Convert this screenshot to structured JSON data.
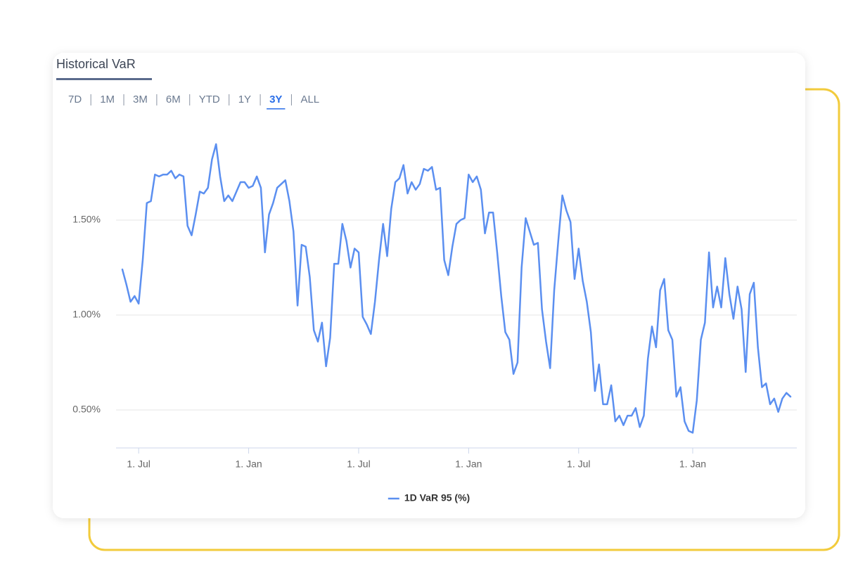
{
  "chart_data": {
    "type": "line",
    "title": "Historical VaR",
    "ranges": [
      "7D",
      "1M",
      "3M",
      "6M",
      "YTD",
      "1Y",
      "3Y",
      "ALL"
    ],
    "active_range": "3Y",
    "categories": [
      null,
      null,
      null,
      null,
      "1. Jul",
      null,
      null,
      null,
      null,
      null,
      null,
      null,
      null,
      null,
      null,
      null,
      null,
      null,
      null,
      null,
      null,
      null,
      null,
      null,
      null,
      null,
      null,
      null,
      null,
      null,
      null,
      "1. Jan",
      null,
      null,
      null,
      null,
      null,
      null,
      null,
      null,
      null,
      null,
      null,
      null,
      null,
      null,
      null,
      null,
      null,
      null,
      null,
      null,
      null,
      null,
      null,
      null,
      null,
      null,
      "1. Jul",
      null,
      null,
      null,
      null,
      null,
      null,
      null,
      null,
      null,
      null,
      null,
      null,
      null,
      null,
      null,
      null,
      null,
      null,
      null,
      null,
      null,
      null,
      null,
      null,
      null,
      null,
      "1. Jan",
      null,
      null,
      null,
      null,
      null,
      null,
      null,
      null,
      null,
      null,
      null,
      null,
      null,
      null,
      null,
      null,
      null,
      null,
      null,
      null,
      null,
      null,
      null,
      null,
      null,
      null,
      "1. Jul",
      null,
      null,
      null,
      null,
      null,
      null,
      null,
      null,
      null,
      null,
      null,
      null,
      null,
      null,
      null,
      null,
      null,
      null,
      null,
      null,
      null,
      null,
      null,
      null,
      null,
      null,
      null,
      "1. Jan",
      null,
      null,
      null,
      null,
      null,
      null,
      null,
      null,
      null,
      null,
      null,
      null,
      null,
      null,
      null,
      null,
      null,
      null,
      null,
      null,
      null,
      null,
      null,
      null
    ],
    "series": [
      {
        "name": "1D VaR 95 (%)",
        "color": "#5b8ff0",
        "values": [
          1.24,
          1.16,
          1.07,
          1.1,
          1.06,
          1.29,
          1.59,
          1.6,
          1.74,
          1.73,
          1.74,
          1.74,
          1.76,
          1.72,
          1.74,
          1.73,
          1.47,
          1.42,
          1.53,
          1.65,
          1.64,
          1.67,
          1.82,
          1.9,
          1.73,
          1.6,
          1.63,
          1.6,
          1.65,
          1.7,
          1.7,
          1.67,
          1.68,
          1.73,
          1.67,
          1.33,
          1.53,
          1.59,
          1.67,
          1.69,
          1.71,
          1.6,
          1.44,
          1.05,
          1.37,
          1.36,
          1.2,
          0.92,
          0.86,
          0.96,
          0.73,
          0.88,
          1.27,
          1.27,
          1.48,
          1.39,
          1.25,
          1.35,
          1.33,
          0.99,
          0.95,
          0.9,
          1.07,
          1.29,
          1.48,
          1.31,
          1.56,
          1.7,
          1.72,
          1.79,
          1.64,
          1.7,
          1.66,
          1.69,
          1.77,
          1.76,
          1.78,
          1.66,
          1.67,
          1.29,
          1.21,
          1.36,
          1.48,
          1.5,
          1.51,
          1.74,
          1.7,
          1.73,
          1.66,
          1.43,
          1.54,
          1.54,
          1.33,
          1.1,
          0.91,
          0.87,
          0.69,
          0.75,
          1.25,
          1.51,
          1.44,
          1.37,
          1.38,
          1.03,
          0.86,
          0.72,
          1.13,
          1.39,
          1.63,
          1.55,
          1.49,
          1.19,
          1.35,
          1.18,
          1.07,
          0.91,
          0.6,
          0.74,
          0.53,
          0.53,
          0.63,
          0.44,
          0.47,
          0.42,
          0.47,
          0.47,
          0.51,
          0.41,
          0.47,
          0.77,
          0.94,
          0.83,
          1.13,
          1.19,
          0.92,
          0.87,
          0.57,
          0.62,
          0.44,
          0.39,
          0.38,
          0.55,
          0.87,
          0.96,
          1.33,
          1.04,
          1.15,
          1.04,
          1.3,
          1.11,
          0.98,
          1.15,
          1.03,
          0.7,
          1.11,
          1.17,
          0.83,
          0.62,
          0.64,
          0.53,
          0.56,
          0.49,
          0.56,
          0.59,
          0.57
        ]
      }
    ],
    "ylim": [
      0.3,
      2.0
    ],
    "yticks": [
      {
        "value": 0.5,
        "label": "0.50%"
      },
      {
        "value": 1.0,
        "label": "1.00%"
      },
      {
        "value": 1.5,
        "label": "1.50%"
      }
    ],
    "grid": true,
    "legend": "bottom"
  }
}
